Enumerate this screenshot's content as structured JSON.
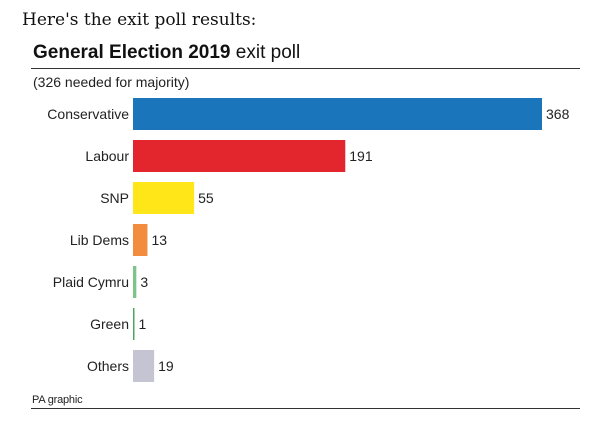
{
  "intro_text": "Here's the exit poll results:",
  "chart_data": {
    "type": "bar",
    "orientation": "horizontal",
    "title_bold": "General Election 2019",
    "title_rest": " exit poll",
    "subtitle": "(326 needed for majority)",
    "categories": [
      "Conservative",
      "Labour",
      "SNP",
      "Lib Dems",
      "Plaid Cymru",
      "Green",
      "Others"
    ],
    "values": [
      368,
      191,
      55,
      13,
      3,
      1,
      19
    ],
    "colors": [
      "#1a75bb",
      "#e3262d",
      "#ffe619",
      "#f28d3f",
      "#7fc38a",
      "#4ea55e",
      "#c5c4d3"
    ],
    "xlim": [
      0,
      368
    ],
    "source": "PA graphic"
  }
}
